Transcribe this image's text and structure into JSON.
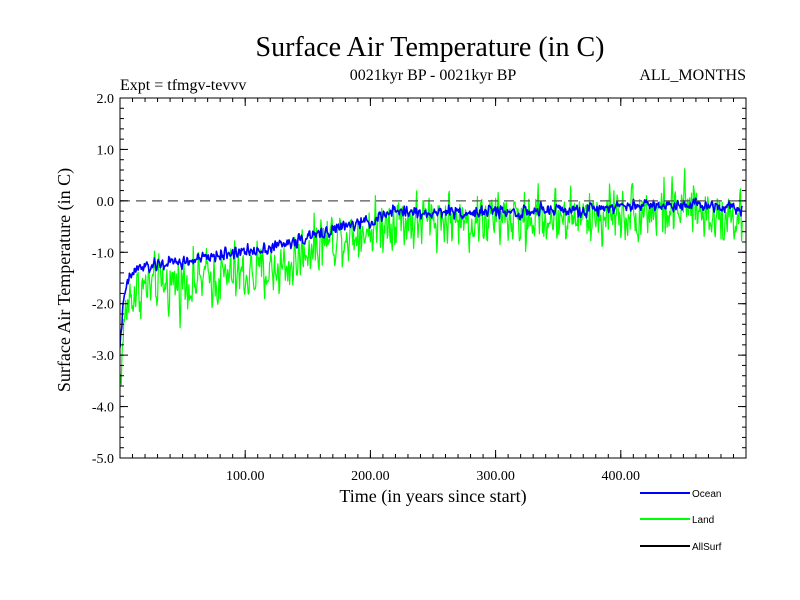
{
  "chart_data": {
    "type": "line",
    "title": "Surface Air Temperature (in C)",
    "subtitle_left": "Expt = tfmgv-tevvv",
    "subtitle_center": "0021kyr BP - 0021kyr BP",
    "subtitle_right": "ALL_MONTHS",
    "xlabel": "Time (in years since start)",
    "ylabel": "Surface Air Temperature (in C)",
    "xlim": [
      0,
      500
    ],
    "ylim": [
      -5.0,
      2.0
    ],
    "x_ticks": [
      100,
      200,
      300,
      400
    ],
    "x_tick_labels": [
      "100.00",
      "200.00",
      "300.00",
      "400.00"
    ],
    "y_ticks": [
      2.0,
      1.0,
      0.0,
      -1.0,
      -2.0,
      -3.0,
      -4.0,
      -5.0
    ],
    "y_tick_labels": [
      "2.0",
      "1.0",
      "0.0",
      "-1.0",
      "-2.0",
      "-3.0",
      "-4.0",
      "-5.0"
    ],
    "reference_line": {
      "y": 0.0,
      "style": "dashed",
      "color": "#555555"
    },
    "series": [
      {
        "name": "Ocean",
        "color": "#0000ff",
        "x": [
          0,
          2,
          4,
          6,
          8,
          10,
          15,
          20,
          30,
          40,
          50,
          60,
          70,
          80,
          90,
          100,
          110,
          120,
          130,
          140,
          150,
          160,
          170,
          180,
          190,
          200,
          210,
          220,
          230,
          240,
          250,
          260,
          270,
          280,
          290,
          300,
          310,
          320,
          330,
          340,
          350,
          360,
          370,
          380,
          390,
          400,
          410,
          420,
          430,
          440,
          450,
          460,
          470,
          480,
          490,
          497
        ],
        "values": [
          -2.8,
          -2.2,
          -1.8,
          -1.6,
          -1.5,
          -1.4,
          -1.3,
          -1.3,
          -1.25,
          -1.2,
          -1.2,
          -1.15,
          -1.1,
          -1.05,
          -1.0,
          -1.0,
          -0.95,
          -0.9,
          -0.85,
          -0.8,
          -0.7,
          -0.65,
          -0.55,
          -0.5,
          -0.45,
          -0.4,
          -0.3,
          -0.2,
          -0.2,
          -0.25,
          -0.25,
          -0.2,
          -0.2,
          -0.25,
          -0.2,
          -0.2,
          -0.2,
          -0.25,
          -0.2,
          -0.2,
          -0.15,
          -0.2,
          -0.2,
          -0.15,
          -0.1,
          -0.1,
          -0.1,
          -0.05,
          -0.1,
          -0.1,
          -0.05,
          -0.05,
          -0.1,
          -0.1,
          -0.1,
          -0.15
        ],
        "noise_amplitude": 0.12
      },
      {
        "name": "Land",
        "color": "#00ff00",
        "x": [
          0,
          2,
          4,
          6,
          8,
          10,
          15,
          20,
          30,
          40,
          50,
          60,
          70,
          80,
          90,
          100,
          110,
          120,
          130,
          140,
          150,
          160,
          170,
          180,
          190,
          200,
          210,
          220,
          230,
          240,
          250,
          260,
          270,
          280,
          290,
          300,
          310,
          320,
          330,
          340,
          350,
          360,
          370,
          380,
          390,
          400,
          410,
          420,
          430,
          440,
          450,
          460,
          470,
          480,
          490,
          497
        ],
        "values": [
          -3.6,
          -2.8,
          -2.3,
          -2.0,
          -1.9,
          -1.8,
          -1.75,
          -1.7,
          -1.65,
          -1.6,
          -1.6,
          -1.55,
          -1.5,
          -1.5,
          -1.45,
          -1.45,
          -1.4,
          -1.35,
          -1.3,
          -1.2,
          -0.9,
          -0.8,
          -0.7,
          -0.65,
          -0.6,
          -0.55,
          -0.45,
          -0.35,
          -0.4,
          -0.4,
          -0.35,
          -0.35,
          -0.4,
          -0.4,
          -0.35,
          -0.35,
          -0.35,
          -0.4,
          -0.3,
          -0.35,
          -0.3,
          -0.3,
          -0.35,
          -0.3,
          -0.25,
          -0.2,
          -0.25,
          -0.15,
          -0.2,
          -0.2,
          -0.15,
          -0.2,
          -0.25,
          -0.25,
          -0.3,
          -0.35
        ],
        "noise_amplitude": 0.55
      },
      {
        "name": "AllSurf",
        "color": "#000000",
        "x": [],
        "values": []
      }
    ],
    "legend_position": "bottom-right"
  }
}
